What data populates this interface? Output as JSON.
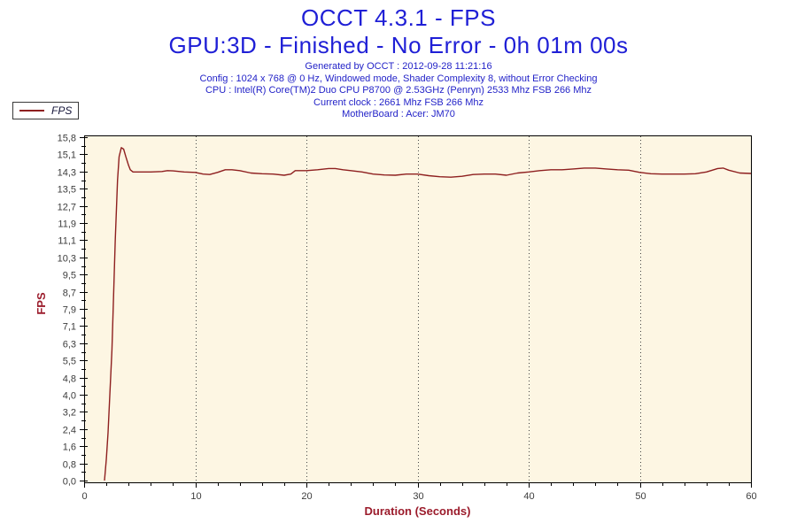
{
  "header": {
    "title": "OCCT 4.3.1 - FPS",
    "subtitle": "GPU:3D - Finished - No Error - 0h 01m 00s",
    "info_lines": [
      "Generated by OCCT : 2012-09-28 11:21:16",
      "Config : 1024 x 768 @ 0 Hz, Windowed mode, Shader Complexity 8, without Error Checking",
      "CPU : Intel(R) Core(TM)2 Duo CPU P8700 @ 2.53GHz (Penryn) 2533 Mhz FSB 266 Mhz",
      "Current clock : 2661 Mhz FSB 266 Mhz",
      "MotherBoard : Acer: JM70"
    ]
  },
  "legend": {
    "label": "FPS"
  },
  "colors": {
    "title_blue": "#1f1fd6",
    "info_blue": "#2323c8",
    "series_red": "#8e1f1f",
    "axis_label_red": "#9b1b2b",
    "plot_background": "#fdf6e3",
    "tick_label": "#3c3c3c",
    "axis_line": "#000000",
    "gridline": "#444444"
  },
  "chart_data": {
    "type": "line",
    "title": "OCCT 4.3.1 - FPS",
    "subtitle": "GPU:3D - Finished - No Error - 0h 01m 00s",
    "xlabel": "Duration (Seconds)",
    "ylabel": "FPS",
    "xlim": [
      0,
      60
    ],
    "ylim": [
      0,
      15.8
    ],
    "x_major_ticks": [
      0,
      10,
      20,
      30,
      40,
      50,
      60
    ],
    "x_major_tick_labels": [
      "0",
      "10",
      "20",
      "30",
      "40",
      "50",
      "60"
    ],
    "x_minor_step": 2,
    "x_gridlines_dotted": [
      10,
      20,
      30,
      40,
      50
    ],
    "y_tick_labels_bottom_to_top": [
      "0,0",
      "0,8",
      "1,6",
      "2,4",
      "3,2",
      "4,0",
      "4,8",
      "5,5",
      "6,3",
      "7,1",
      "7,9",
      "8,7",
      "9,5",
      "10,3",
      "11,1",
      "11,9",
      "12,7",
      "13,5",
      "14,3",
      "15,1",
      "15,8"
    ],
    "y_minor_ticks_per_interval": 1,
    "grid": "vertical-dotted-only",
    "legend_position": "top-left-outside",
    "series": [
      {
        "name": "FPS",
        "color": "#8e1f1f",
        "points": [
          [
            1.83,
            0.0
          ],
          [
            2.0,
            1.0
          ],
          [
            2.15,
            2.2
          ],
          [
            2.5,
            6.0
          ],
          [
            2.8,
            11.0
          ],
          [
            3.0,
            13.8
          ],
          [
            3.15,
            14.9
          ],
          [
            3.35,
            15.32
          ],
          [
            3.55,
            15.25
          ],
          [
            3.75,
            14.9
          ],
          [
            4.0,
            14.5
          ],
          [
            4.15,
            14.3
          ],
          [
            4.4,
            14.2
          ],
          [
            5,
            14.2
          ],
          [
            6,
            14.2
          ],
          [
            7,
            14.22
          ],
          [
            7.5,
            14.26
          ],
          [
            8,
            14.25
          ],
          [
            9,
            14.2
          ],
          [
            10,
            14.18
          ],
          [
            10.7,
            14.1
          ],
          [
            11.3,
            14.08
          ],
          [
            12,
            14.18
          ],
          [
            12.7,
            14.3
          ],
          [
            13.3,
            14.3
          ],
          [
            14,
            14.26
          ],
          [
            15,
            14.15
          ],
          [
            16,
            14.12
          ],
          [
            17,
            14.1
          ],
          [
            18,
            14.05
          ],
          [
            18.6,
            14.1
          ],
          [
            19,
            14.26
          ],
          [
            20,
            14.26
          ],
          [
            21,
            14.3
          ],
          [
            22,
            14.36
          ],
          [
            22.6,
            14.36
          ],
          [
            23.3,
            14.3
          ],
          [
            24,
            14.26
          ],
          [
            25,
            14.2
          ],
          [
            26,
            14.1
          ],
          [
            27,
            14.06
          ],
          [
            28,
            14.05
          ],
          [
            29,
            14.1
          ],
          [
            30,
            14.1
          ],
          [
            31,
            14.03
          ],
          [
            32,
            13.98
          ],
          [
            33,
            13.96
          ],
          [
            34,
            14.0
          ],
          [
            35,
            14.08
          ],
          [
            36,
            14.1
          ],
          [
            37,
            14.1
          ],
          [
            38,
            14.05
          ],
          [
            39,
            14.15
          ],
          [
            40,
            14.2
          ],
          [
            41,
            14.26
          ],
          [
            42,
            14.3
          ],
          [
            43,
            14.3
          ],
          [
            44,
            14.34
          ],
          [
            45,
            14.38
          ],
          [
            46,
            14.38
          ],
          [
            47,
            14.34
          ],
          [
            48,
            14.3
          ],
          [
            49,
            14.28
          ],
          [
            50,
            14.18
          ],
          [
            51,
            14.12
          ],
          [
            52,
            14.1
          ],
          [
            53,
            14.1
          ],
          [
            54,
            14.1
          ],
          [
            55,
            14.12
          ],
          [
            56,
            14.2
          ],
          [
            57,
            14.36
          ],
          [
            57.5,
            14.38
          ],
          [
            58,
            14.28
          ],
          [
            59,
            14.15
          ],
          [
            60,
            14.13
          ]
        ]
      }
    ]
  }
}
